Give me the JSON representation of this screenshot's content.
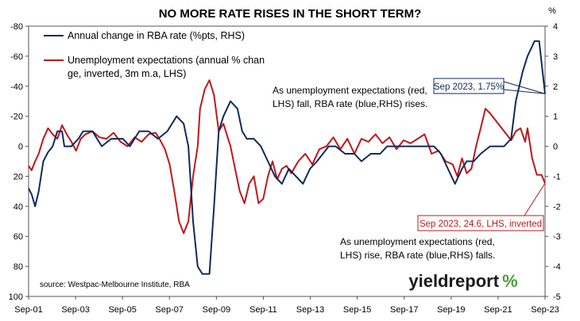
{
  "chart_data": {
    "type": "line",
    "title": "NO MORE RATE RISES IN THE SHORT TERM?",
    "left_axis": {
      "label": "",
      "inverted": true,
      "ylim": [
        100,
        -80
      ],
      "ticks": [
        "-80",
        "-60",
        "-40",
        "-20",
        "0",
        "20",
        "40",
        "60",
        "80",
        "100"
      ]
    },
    "right_axis": {
      "label": "%",
      "ylim": [
        -5,
        4
      ],
      "ticks": [
        "4",
        "3",
        "2",
        "1",
        "0",
        "-1",
        "-2",
        "-3",
        "-4",
        "-5"
      ]
    },
    "x_ticks": [
      "Sep-01",
      "Sep-03",
      "Sep-05",
      "Sep-07",
      "Sep-09",
      "Sep-11",
      "Sep-13",
      "Sep-15",
      "Sep-17",
      "Sep-19",
      "Sep-21",
      "Sep-23"
    ],
    "x_range": [
      "Sep-01",
      "Sep-23"
    ],
    "grid": false,
    "legend": {
      "position": "top-left"
    },
    "series": [
      {
        "name": "Annual change in RBA rate (%pts, RHS)",
        "axis": "right",
        "color": "#0f2a5c",
        "points": [
          [
            2001.67,
            -1.4
          ],
          [
            2001.8,
            -1.6
          ],
          [
            2001.95,
            -2.0
          ],
          [
            2002.1,
            -1.5
          ],
          [
            2002.3,
            -0.5
          ],
          [
            2002.5,
            -0.2
          ],
          [
            2002.7,
            0.0
          ],
          [
            2002.9,
            0.5
          ],
          [
            2003.1,
            0.5
          ],
          [
            2003.2,
            0.0
          ],
          [
            2003.5,
            0.0
          ],
          [
            2003.8,
            0.25
          ],
          [
            2004.0,
            0.5
          ],
          [
            2004.4,
            0.5
          ],
          [
            2004.8,
            0.0
          ],
          [
            2005.2,
            0.25
          ],
          [
            2005.7,
            0.25
          ],
          [
            2006.0,
            0.0
          ],
          [
            2006.4,
            0.5
          ],
          [
            2006.8,
            0.5
          ],
          [
            2007.2,
            0.25
          ],
          [
            2007.6,
            0.5
          ],
          [
            2008.0,
            1.0
          ],
          [
            2008.3,
            0.75
          ],
          [
            2008.5,
            0.0
          ],
          [
            2008.7,
            -2.5
          ],
          [
            2008.9,
            -4.0
          ],
          [
            2009.1,
            -4.25
          ],
          [
            2009.4,
            -4.25
          ],
          [
            2009.6,
            -2.0
          ],
          [
            2009.8,
            0.5
          ],
          [
            2010.0,
            1.0
          ],
          [
            2010.3,
            1.5
          ],
          [
            2010.6,
            1.25
          ],
          [
            2010.8,
            0.5
          ],
          [
            2011.0,
            0.25
          ],
          [
            2011.3,
            0.25
          ],
          [
            2011.6,
            0.0
          ],
          [
            2011.9,
            -0.5
          ],
          [
            2012.2,
            -1.0
          ],
          [
            2012.5,
            -1.25
          ],
          [
            2012.8,
            -0.75
          ],
          [
            2013.1,
            -1.0
          ],
          [
            2013.4,
            -1.25
          ],
          [
            2013.7,
            -0.75
          ],
          [
            2014.0,
            -0.5
          ],
          [
            2014.5,
            0.0
          ],
          [
            2014.8,
            0.0
          ],
          [
            2015.2,
            -0.25
          ],
          [
            2015.6,
            -0.25
          ],
          [
            2015.9,
            -0.5
          ],
          [
            2016.3,
            -0.25
          ],
          [
            2016.7,
            -0.25
          ],
          [
            2017.0,
            0.0
          ],
          [
            2017.5,
            0.0
          ],
          [
            2018.0,
            0.0
          ],
          [
            2018.5,
            0.0
          ],
          [
            2019.0,
            0.0
          ],
          [
            2019.3,
            -0.25
          ],
          [
            2019.6,
            -0.75
          ],
          [
            2019.9,
            -1.25
          ],
          [
            2020.2,
            -0.75
          ],
          [
            2020.4,
            -0.5
          ],
          [
            2020.7,
            -0.5
          ],
          [
            2021.0,
            -0.25
          ],
          [
            2021.4,
            0.0
          ],
          [
            2021.8,
            0.0
          ],
          [
            2022.0,
            0.0
          ],
          [
            2022.3,
            0.25
          ],
          [
            2022.5,
            1.5
          ],
          [
            2022.8,
            2.5
          ],
          [
            2023.0,
            3.0
          ],
          [
            2023.3,
            3.5
          ],
          [
            2023.5,
            3.5
          ],
          [
            2023.75,
            1.75
          ]
        ]
      },
      {
        "name": "Unemployment expectations (annual % change, inverted, 3m m.a, LHS)",
        "axis": "left",
        "color": "#c0171c",
        "points": [
          [
            2001.67,
            13
          ],
          [
            2001.8,
            16
          ],
          [
            2001.95,
            10
          ],
          [
            2002.1,
            5
          ],
          [
            2002.3,
            -5
          ],
          [
            2002.5,
            -12
          ],
          [
            2002.7,
            -8
          ],
          [
            2002.9,
            -5
          ],
          [
            2003.1,
            -14
          ],
          [
            2003.3,
            -8
          ],
          [
            2003.5,
            -3
          ],
          [
            2003.7,
            3
          ],
          [
            2003.9,
            -5
          ],
          [
            2004.1,
            -8
          ],
          [
            2004.4,
            -10
          ],
          [
            2004.7,
            -6
          ],
          [
            2005.0,
            -5
          ],
          [
            2005.3,
            -9
          ],
          [
            2005.6,
            -3
          ],
          [
            2005.9,
            0
          ],
          [
            2006.2,
            -6
          ],
          [
            2006.5,
            -3
          ],
          [
            2006.8,
            -8
          ],
          [
            2007.1,
            -9
          ],
          [
            2007.3,
            -4
          ],
          [
            2007.5,
            2
          ],
          [
            2007.7,
            12
          ],
          [
            2007.9,
            30
          ],
          [
            2008.1,
            50
          ],
          [
            2008.3,
            58
          ],
          [
            2008.5,
            50
          ],
          [
            2008.7,
            20
          ],
          [
            2008.9,
            0
          ],
          [
            2009.0,
            -25
          ],
          [
            2009.2,
            -38
          ],
          [
            2009.4,
            -44
          ],
          [
            2009.6,
            -34
          ],
          [
            2009.8,
            -10
          ],
          [
            2010.0,
            -15
          ],
          [
            2010.3,
            0
          ],
          [
            2010.5,
            15
          ],
          [
            2010.7,
            30
          ],
          [
            2010.9,
            38
          ],
          [
            2011.1,
            25
          ],
          [
            2011.3,
            20
          ],
          [
            2011.5,
            38
          ],
          [
            2011.7,
            35
          ],
          [
            2011.9,
            20
          ],
          [
            2012.1,
            10
          ],
          [
            2012.3,
            22
          ],
          [
            2012.5,
            15
          ],
          [
            2012.7,
            13
          ],
          [
            2012.9,
            18
          ],
          [
            2013.2,
            10
          ],
          [
            2013.5,
            5
          ],
          [
            2013.8,
            12
          ],
          [
            2014.1,
            2
          ],
          [
            2014.4,
            0
          ],
          [
            2014.7,
            -6
          ],
          [
            2015.0,
            2
          ],
          [
            2015.3,
            -5
          ],
          [
            2015.6,
            5
          ],
          [
            2015.9,
            -5
          ],
          [
            2016.2,
            -3
          ],
          [
            2016.5,
            -8
          ],
          [
            2016.8,
            -2
          ],
          [
            2017.1,
            -6
          ],
          [
            2017.4,
            2
          ],
          [
            2017.7,
            -4
          ],
          [
            2018.0,
            -2
          ],
          [
            2018.3,
            -5
          ],
          [
            2018.6,
            -8
          ],
          [
            2018.9,
            5
          ],
          [
            2019.2,
            3
          ],
          [
            2019.5,
            10
          ],
          [
            2019.8,
            12
          ],
          [
            2020.0,
            20
          ],
          [
            2020.2,
            8
          ],
          [
            2020.4,
            18
          ],
          [
            2020.6,
            15
          ],
          [
            2020.8,
            0
          ],
          [
            2021.0,
            -12
          ],
          [
            2021.2,
            -25
          ],
          [
            2021.4,
            -22
          ],
          [
            2021.6,
            -18
          ],
          [
            2021.9,
            -12
          ],
          [
            2022.1,
            -8
          ],
          [
            2022.3,
            -4
          ],
          [
            2022.5,
            -10
          ],
          [
            2022.7,
            -12
          ],
          [
            2022.9,
            -3
          ],
          [
            2023.0,
            -12
          ],
          [
            2023.2,
            8
          ],
          [
            2023.4,
            19
          ],
          [
            2023.6,
            19
          ],
          [
            2023.75,
            24.6
          ]
        ]
      }
    ],
    "annotations": [
      {
        "text_lines": [
          "As unemployment expectations (red,",
          "LHS) fall, RBA rate (blue,RHS) rises."
        ]
      },
      {
        "text_lines": [
          "As unemployment expectations (red,",
          "LHS) rise, RBA rate (blue,RHS) falls."
        ]
      }
    ],
    "callouts": [
      {
        "text": "Sep 2023, 1.75%",
        "color": "#0f2a5c"
      },
      {
        "text": "Sep 2023, 24.6, LHS, inverted",
        "color": "#c0171c"
      }
    ],
    "source": "source: Westpac-Melbourne Institute, RBA",
    "brand": {
      "word": "yieldreport",
      "mark": "%",
      "mark_color": "#4aa03a"
    }
  }
}
